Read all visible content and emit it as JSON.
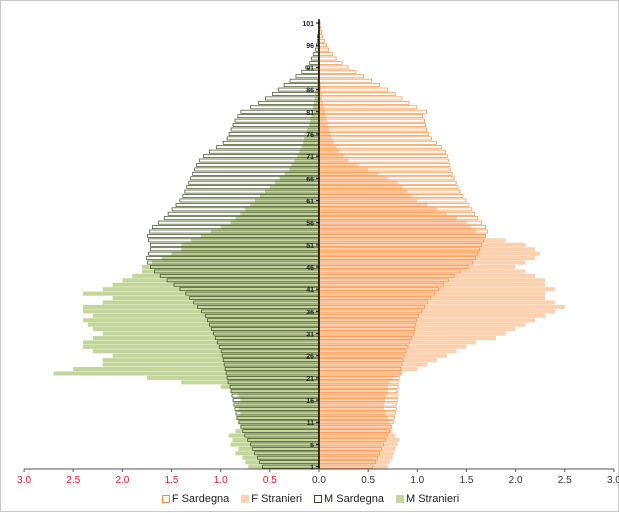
{
  "chart_data": {
    "type": "bar",
    "orientation": "population-pyramid",
    "xlim": [
      -3.0,
      3.0
    ],
    "xticks": [
      {
        "value": -3.0,
        "label": "3.0"
      },
      {
        "value": -2.5,
        "label": "2.5"
      },
      {
        "value": -2.0,
        "label": "2.0"
      },
      {
        "value": -1.5,
        "label": "1.5"
      },
      {
        "value": -1.0,
        "label": "1.0"
      },
      {
        "value": -0.5,
        "label": "0.5"
      },
      {
        "value": 0.0,
        "label": "0.0"
      },
      {
        "value": 0.5,
        "label": "0.5"
      },
      {
        "value": 1.0,
        "label": "1.0"
      },
      {
        "value": 1.5,
        "label": "1.5"
      },
      {
        "value": 2.0,
        "label": "2.0"
      },
      {
        "value": 2.5,
        "label": "2.5"
      },
      {
        "value": 3.0,
        "label": "3.0"
      }
    ],
    "ages": [
      1,
      2,
      3,
      4,
      5,
      6,
      7,
      8,
      9,
      10,
      11,
      12,
      13,
      14,
      15,
      16,
      17,
      18,
      19,
      20,
      21,
      22,
      23,
      24,
      25,
      26,
      27,
      28,
      29,
      30,
      31,
      32,
      33,
      34,
      35,
      36,
      37,
      38,
      39,
      40,
      41,
      42,
      43,
      44,
      45,
      46,
      47,
      48,
      49,
      50,
      51,
      52,
      53,
      54,
      55,
      56,
      57,
      58,
      59,
      60,
      61,
      62,
      63,
      64,
      65,
      66,
      67,
      68,
      69,
      70,
      71,
      72,
      73,
      74,
      75,
      76,
      77,
      78,
      79,
      80,
      81,
      82,
      83,
      84,
      85,
      86,
      87,
      88,
      89,
      90,
      91,
      92,
      93,
      94,
      95,
      96,
      97,
      98,
      99,
      100,
      101
    ],
    "age_tick_labels": [
      "1",
      "6",
      "11",
      "16",
      "21",
      "26",
      "31",
      "36",
      "41",
      "46",
      "51",
      "56",
      "61",
      "66",
      "71",
      "76",
      "81",
      "86",
      "91",
      "96",
      "101"
    ],
    "colors": {
      "F Sardegna": "#ff8c3c",
      "F Stranieri": "#fdd0ae",
      "M Sardegna": "#3a4a1a",
      "M Stranieri": "#c2d69b",
      "negative_tick": "#e02020",
      "positive_tick": "#333333"
    },
    "series": [
      {
        "name": "F Sardegna",
        "values": [
          0.55,
          0.58,
          0.6,
          0.62,
          0.64,
          0.66,
          0.68,
          0.7,
          0.72,
          0.74,
          0.76,
          0.77,
          0.78,
          0.79,
          0.79,
          0.8,
          0.8,
          0.8,
          0.81,
          0.81,
          0.82,
          0.83,
          0.84,
          0.85,
          0.86,
          0.87,
          0.89,
          0.91,
          0.93,
          0.95,
          0.97,
          0.98,
          0.99,
          1.0,
          1.02,
          1.05,
          1.08,
          1.11,
          1.14,
          1.18,
          1.22,
          1.27,
          1.32,
          1.38,
          1.44,
          1.52,
          1.57,
          1.6,
          1.62,
          1.64,
          1.66,
          1.68,
          1.7,
          1.72,
          1.7,
          1.66,
          1.62,
          1.59,
          1.56,
          1.53,
          1.5,
          1.47,
          1.44,
          1.42,
          1.4,
          1.38,
          1.36,
          1.34,
          1.33,
          1.32,
          1.31,
          1.29,
          1.25,
          1.2,
          1.15,
          1.12,
          1.1,
          1.09,
          1.08,
          1.06,
          1.1,
          1.0,
          0.92,
          0.85,
          0.78,
          0.7,
          0.62,
          0.54,
          0.46,
          0.38,
          0.3,
          0.24,
          0.18,
          0.14,
          0.1,
          0.08,
          0.06,
          0.04,
          0.03,
          0.02,
          0.01
        ]
      },
      {
        "name": "F Stranieri",
        "values": [
          0.7,
          0.72,
          0.75,
          0.76,
          0.78,
          0.8,
          0.82,
          0.78,
          0.75,
          0.74,
          0.72,
          0.7,
          0.68,
          0.66,
          0.66,
          0.67,
          0.68,
          0.7,
          0.7,
          0.72,
          0.75,
          0.85,
          1.0,
          1.1,
          1.2,
          1.3,
          1.4,
          1.5,
          1.6,
          1.8,
          1.9,
          2.0,
          2.1,
          2.2,
          2.3,
          2.4,
          2.5,
          2.4,
          2.3,
          2.3,
          2.4,
          2.3,
          2.3,
          2.2,
          2.1,
          2.0,
          2.1,
          2.2,
          2.25,
          2.2,
          2.1,
          1.9,
          1.7,
          1.6,
          1.55,
          1.5,
          1.4,
          1.3,
          1.2,
          1.1,
          1.0,
          0.95,
          0.9,
          0.85,
          0.8,
          0.7,
          0.6,
          0.5,
          0.4,
          0.3,
          0.25,
          0.2,
          0.18,
          0.15,
          0.13,
          0.12,
          0.1,
          0.09,
          0.08,
          0.07,
          0.06,
          0.05,
          0.04,
          0.03,
          0.03,
          0.02,
          0.02,
          0.01,
          0.01,
          0.01,
          0.01,
          0.01,
          0.0,
          0.0,
          0.0,
          0.0,
          0.0,
          0.0,
          0.0,
          0.0,
          0.0
        ]
      },
      {
        "name": "M Sardegna",
        "values": [
          0.58,
          0.61,
          0.63,
          0.66,
          0.68,
          0.7,
          0.73,
          0.76,
          0.78,
          0.8,
          0.82,
          0.84,
          0.85,
          0.86,
          0.87,
          0.88,
          0.89,
          0.9,
          0.91,
          0.93,
          0.94,
          0.95,
          0.96,
          0.97,
          0.98,
          0.99,
          1.0,
          1.02,
          1.04,
          1.06,
          1.08,
          1.1,
          1.12,
          1.14,
          1.16,
          1.2,
          1.24,
          1.28,
          1.32,
          1.36,
          1.42,
          1.48,
          1.55,
          1.62,
          1.68,
          1.72,
          1.75,
          1.76,
          1.74,
          1.72,
          1.72,
          1.74,
          1.75,
          1.73,
          1.7,
          1.64,
          1.58,
          1.54,
          1.5,
          1.46,
          1.42,
          1.39,
          1.37,
          1.35,
          1.33,
          1.31,
          1.29,
          1.27,
          1.25,
          1.22,
          1.18,
          1.12,
          1.05,
          0.98,
          0.94,
          0.92,
          0.9,
          0.88,
          0.86,
          0.83,
          0.8,
          0.7,
          0.62,
          0.55,
          0.48,
          0.42,
          0.36,
          0.3,
          0.24,
          0.18,
          0.14,
          0.1,
          0.08,
          0.06,
          0.04,
          0.03,
          0.02,
          0.02,
          0.01,
          0.01,
          0.01
        ]
      },
      {
        "name": "M Stranieri",
        "values": [
          0.72,
          0.75,
          0.78,
          0.85,
          0.82,
          0.9,
          0.88,
          0.92,
          0.85,
          0.8,
          0.82,
          0.84,
          0.8,
          0.82,
          0.85,
          0.8,
          0.82,
          0.9,
          1.0,
          1.4,
          1.75,
          2.7,
          2.5,
          2.2,
          2.2,
          2.1,
          2.3,
          2.4,
          2.4,
          2.3,
          2.2,
          2.3,
          2.35,
          2.4,
          2.3,
          2.4,
          2.4,
          2.2,
          2.1,
          2.4,
          2.2,
          2.1,
          2.0,
          1.9,
          1.8,
          1.8,
          1.7,
          1.6,
          1.5,
          1.4,
          1.4,
          1.3,
          1.2,
          1.1,
          1.0,
          0.9,
          0.85,
          0.8,
          0.75,
          0.7,
          0.65,
          0.6,
          0.55,
          0.5,
          0.45,
          0.4,
          0.35,
          0.3,
          0.28,
          0.25,
          0.22,
          0.2,
          0.18,
          0.16,
          0.15,
          0.13,
          0.12,
          0.1,
          0.09,
          0.08,
          0.07,
          0.06,
          0.05,
          0.04,
          0.04,
          0.03,
          0.02,
          0.02,
          0.01,
          0.01,
          0.01,
          0.01,
          0.0,
          0.0,
          0.0,
          0.0,
          0.0,
          0.0,
          0.0,
          0.0,
          0.0
        ]
      }
    ],
    "legend": [
      {
        "label": "F Sardegna",
        "style": "outline"
      },
      {
        "label": "F Stranieri",
        "style": "fill"
      },
      {
        "label": "M Sardegna",
        "style": "outline"
      },
      {
        "label": "M Stranieri",
        "style": "fill"
      }
    ],
    "legend_position": "bottom"
  }
}
